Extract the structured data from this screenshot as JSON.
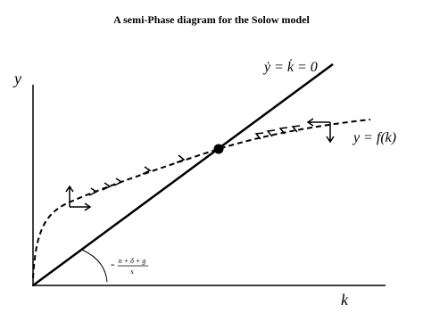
{
  "title": "A semi-Phase diagram for the Solow model",
  "axes": {
    "y_label": "y",
    "x_label": "k"
  },
  "labels": {
    "steady_line": "ẏ = k̇ = 0",
    "curve": "y = f(k)",
    "slope": {
      "prefix": "=",
      "numerator": "n + δ + g",
      "denominator": "s"
    }
  }
}
